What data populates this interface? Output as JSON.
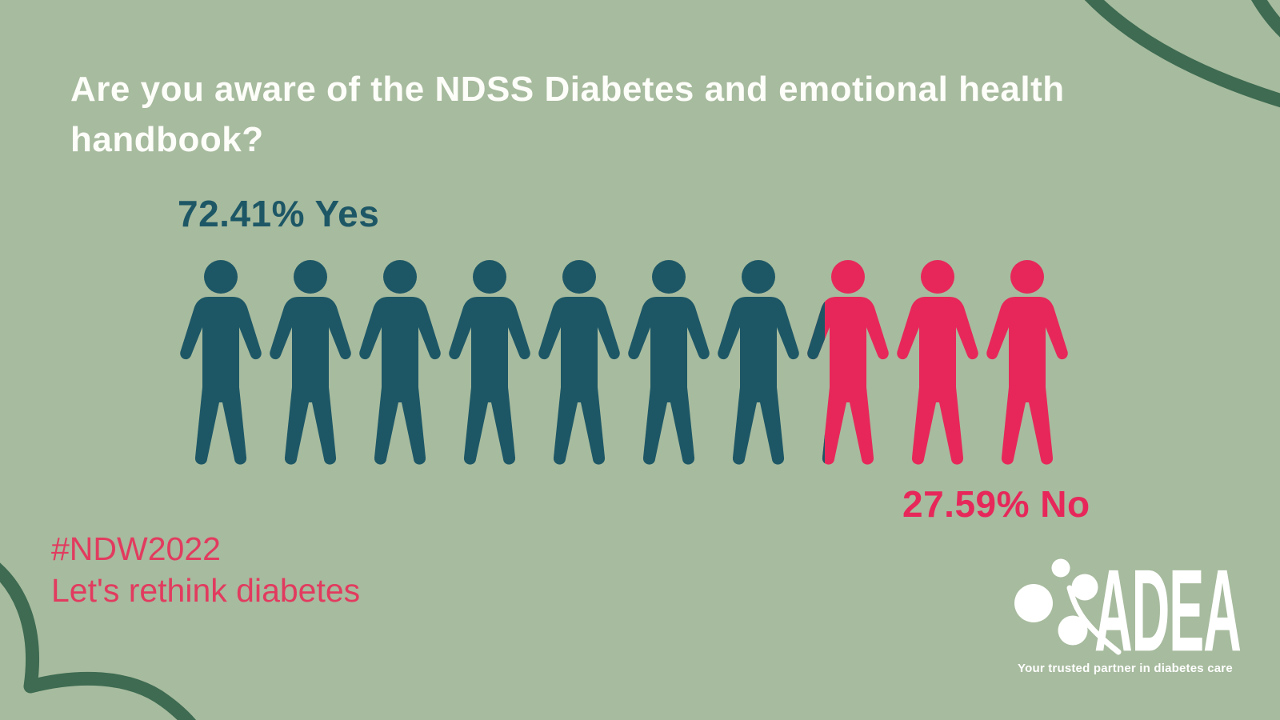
{
  "page": {
    "background_color": "#a7bb9e",
    "decor_color": "#3e6b52"
  },
  "title": {
    "text": "Are you aware of the NDSS Diabetes and emotional health handbook?",
    "color": "#ffffff"
  },
  "chart_data": {
    "type": "pictograph",
    "title": "Are you aware of the NDSS Diabetes and emotional health handbook?",
    "categories": [
      "Yes",
      "No"
    ],
    "values": [
      72.41,
      27.59
    ],
    "unit": "%",
    "icon": "person",
    "icon_count": 10,
    "icons_colored_yes": 7.241,
    "labels": {
      "yes": "72.41% Yes",
      "no": "27.59% No"
    },
    "colors": {
      "yes": "#1d5766",
      "no": "#e7275a"
    },
    "legend_position": "labels-inline"
  },
  "campaign": {
    "hashtag": "#NDW2022",
    "slogan": "Let's rethink diabetes",
    "color": "#e23b5f"
  },
  "logo": {
    "name": "ADEA",
    "tagline": "Your trusted partner in diabetes care",
    "color": "#ffffff"
  }
}
